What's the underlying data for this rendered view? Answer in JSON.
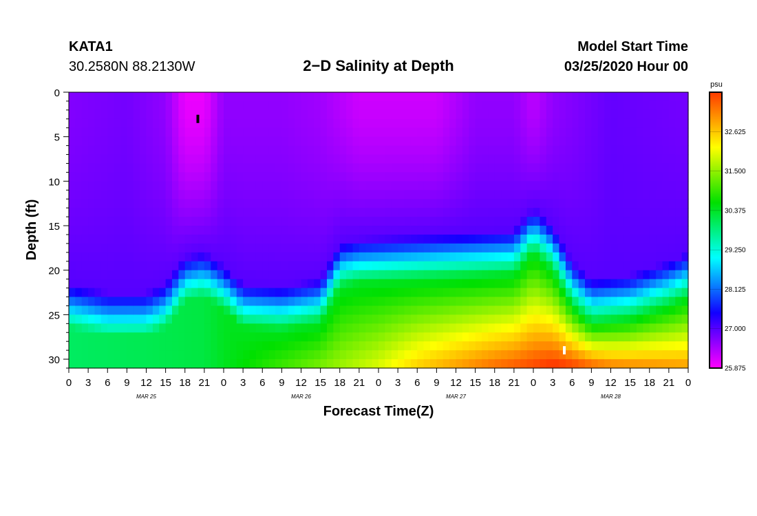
{
  "header": {
    "station": "KATA1",
    "coordinates": "30.2580N 88.2130W",
    "title": "2−D Salinity at Depth",
    "start_label": "Model Start Time",
    "start_value": "03/25/2020 Hour 00"
  },
  "chart_data": {
    "type": "heatmap",
    "title": "2−D Salinity at Depth",
    "xlabel": "Forecast Time(Z)",
    "ylabel": "Depth (ft)",
    "x_hours_range": [
      0,
      96
    ],
    "x_tick_step_hours": 3,
    "x_tick_labels": [
      "0",
      "3",
      "6",
      "9",
      "12",
      "15",
      "18",
      "21",
      "0",
      "3",
      "6",
      "9",
      "12",
      "15",
      "18",
      "21",
      "0",
      "3",
      "6",
      "9",
      "12",
      "15",
      "18",
      "21",
      "0",
      "3",
      "6",
      "9",
      "12",
      "15",
      "18",
      "21",
      "0"
    ],
    "date_labels": [
      {
        "text": "MAR 25",
        "hour": 12
      },
      {
        "text": "MAR 26",
        "hour": 36
      },
      {
        "text": "MAR 27",
        "hour": 60
      },
      {
        "text": "MAR 28",
        "hour": 84
      }
    ],
    "ylim": [
      0,
      31
    ],
    "y_ticks": [
      0,
      5,
      10,
      15,
      20,
      25,
      30
    ],
    "colorbar": {
      "unit": "psu",
      "min": 25.875,
      "max": 33.75,
      "tick_labels": [
        "25.875",
        "27.000",
        "28.125",
        "29.250",
        "30.375",
        "31.500",
        "32.625"
      ],
      "colors": [
        "#ff00ff",
        "#1200ff",
        "#00ffff",
        "#00e000",
        "#ffff00",
        "#ff3a00"
      ]
    },
    "halocline_depth_ft": [
      [
        0,
        23.5
      ],
      [
        6,
        24.5
      ],
      [
        12,
        24.5
      ],
      [
        15,
        23.5
      ],
      [
        18,
        20.5
      ],
      [
        21,
        20.0
      ],
      [
        24,
        21.5
      ],
      [
        27,
        23.5
      ],
      [
        33,
        23.8
      ],
      [
        39,
        23.0
      ],
      [
        42,
        19.0
      ],
      [
        45,
        18.5
      ],
      [
        57,
        18.0
      ],
      [
        69,
        17.5
      ],
      [
        72,
        15.0
      ],
      [
        75,
        17.0
      ],
      [
        78,
        21.0
      ],
      [
        81,
        23.0
      ],
      [
        87,
        22.5
      ],
      [
        93,
        21.0
      ],
      [
        96,
        20.0
      ]
    ],
    "surface_salinity_psu": [
      [
        0,
        26.7
      ],
      [
        9,
        26.8
      ],
      [
        15,
        26.6
      ],
      [
        18,
        26.0
      ],
      [
        21,
        26.0
      ],
      [
        24,
        26.6
      ],
      [
        33,
        26.6
      ],
      [
        39,
        26.5
      ],
      [
        45,
        26.2
      ],
      [
        57,
        26.2
      ],
      [
        63,
        26.6
      ],
      [
        69,
        26.6
      ],
      [
        72,
        26.3
      ],
      [
        75,
        26.6
      ],
      [
        84,
        26.9
      ],
      [
        96,
        26.8
      ]
    ],
    "bottom_salinity_psu": [
      [
        0,
        30.0
      ],
      [
        12,
        30.1
      ],
      [
        21,
        30.2
      ],
      [
        27,
        30.6
      ],
      [
        36,
        31.2
      ],
      [
        42,
        31.6
      ],
      [
        48,
        32.0
      ],
      [
        54,
        32.6
      ],
      [
        60,
        33.0
      ],
      [
        66,
        33.4
      ],
      [
        72,
        33.7
      ],
      [
        75,
        33.9
      ],
      [
        78,
        33.8
      ],
      [
        84,
        33.3
      ],
      [
        96,
        33.0
      ]
    ],
    "markers": [
      {
        "hour": 20,
        "depth_ft": 3,
        "color": "#000000"
      },
      {
        "hour": 76.8,
        "depth_ft": 29,
        "color": "#ffffff"
      }
    ]
  }
}
